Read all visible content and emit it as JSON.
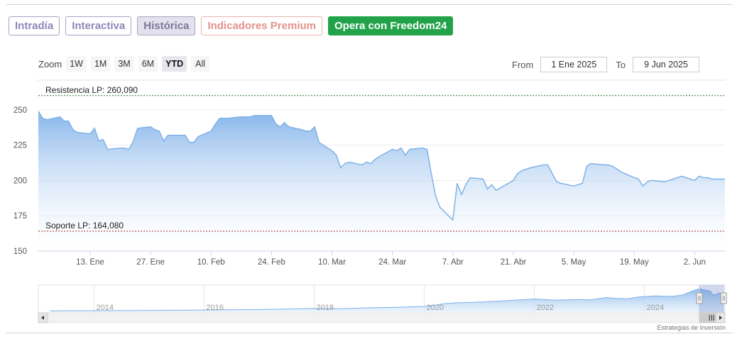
{
  "tabs": [
    {
      "label": "Intradía",
      "style": "normal"
    },
    {
      "label": "Interactiva",
      "style": "normal"
    },
    {
      "label": "Histórica",
      "style": "active"
    },
    {
      "label": "Indicadores Premium",
      "style": "premium"
    },
    {
      "label": "Opera con Freedom24",
      "style": "cta"
    }
  ],
  "zoom": {
    "label": "Zoom",
    "options": [
      "1W",
      "1M",
      "3M",
      "6M",
      "YTD",
      "All"
    ],
    "selected": "YTD"
  },
  "range": {
    "from_label": "From",
    "from_value": "1 Ene 2025",
    "to_label": "To",
    "to_value": "9 Jun 2025"
  },
  "credit": "Estrategias de Inversión",
  "colors": {
    "line": "#7fb2e8",
    "fill_top": "#7fb1ea",
    "resistance": "#2e6b2e",
    "support": "#a03030",
    "cta": "#22a34a"
  },
  "chart_data": {
    "type": "area",
    "x_start": "2025-01-01",
    "x_end": "2025-06-09",
    "ylim": [
      150,
      262
    ],
    "y_ticks": [
      150,
      175,
      200,
      225,
      250
    ],
    "x_ticks": [
      {
        "date": "2025-01-13",
        "label": "13. Ene"
      },
      {
        "date": "2025-01-27",
        "label": "27. Ene"
      },
      {
        "date": "2025-02-10",
        "label": "10. Feb"
      },
      {
        "date": "2025-02-24",
        "label": "24. Feb"
      },
      {
        "date": "2025-03-10",
        "label": "10. Mar"
      },
      {
        "date": "2025-03-24",
        "label": "24. Mar"
      },
      {
        "date": "2025-04-07",
        "label": "7. Abr"
      },
      {
        "date": "2025-04-21",
        "label": "21. Abr"
      },
      {
        "date": "2025-05-05",
        "label": "5. May"
      },
      {
        "date": "2025-05-19",
        "label": "19. May"
      },
      {
        "date": "2025-06-02",
        "label": "2. Jun"
      }
    ],
    "levels": [
      {
        "label": "Resistencia LP: 260,090",
        "value": 260.09,
        "kind": "resistance"
      },
      {
        "label": "Soporte LP: 164,080",
        "value": 164.08,
        "kind": "support"
      }
    ],
    "series": [
      {
        "points": [
          [
            "2025-01-01",
            249
          ],
          [
            "2025-01-02",
            244
          ],
          [
            "2025-01-03",
            243
          ],
          [
            "2025-01-06",
            245
          ],
          [
            "2025-01-07",
            242
          ],
          [
            "2025-01-08",
            242
          ],
          [
            "2025-01-09",
            236
          ],
          [
            "2025-01-10",
            234
          ],
          [
            "2025-01-13",
            233
          ],
          [
            "2025-01-14",
            237
          ],
          [
            "2025-01-15",
            228
          ],
          [
            "2025-01-16",
            229
          ],
          [
            "2025-01-17",
            222
          ],
          [
            "2025-01-20",
            223
          ],
          [
            "2025-01-21",
            223
          ],
          [
            "2025-01-22",
            222
          ],
          [
            "2025-01-23",
            228
          ],
          [
            "2025-01-24",
            237
          ],
          [
            "2025-01-27",
            238
          ],
          [
            "2025-01-28",
            236
          ],
          [
            "2025-01-29",
            235
          ],
          [
            "2025-01-30",
            228
          ],
          [
            "2025-01-31",
            232
          ],
          [
            "2025-02-03",
            232
          ],
          [
            "2025-02-04",
            232
          ],
          [
            "2025-02-05",
            227
          ],
          [
            "2025-02-06",
            227
          ],
          [
            "2025-02-07",
            231
          ],
          [
            "2025-02-10",
            235
          ],
          [
            "2025-02-11",
            240
          ],
          [
            "2025-02-12",
            244
          ],
          [
            "2025-02-13",
            244
          ],
          [
            "2025-02-14",
            244
          ],
          [
            "2025-02-17",
            245
          ],
          [
            "2025-02-18",
            245
          ],
          [
            "2025-02-19",
            245
          ],
          [
            "2025-02-20",
            246
          ],
          [
            "2025-02-21",
            246
          ],
          [
            "2025-02-24",
            246
          ],
          [
            "2025-02-25",
            240
          ],
          [
            "2025-02-26",
            238
          ],
          [
            "2025-02-27",
            241
          ],
          [
            "2025-02-28",
            238
          ],
          [
            "2025-03-03",
            236
          ],
          [
            "2025-03-04",
            235
          ],
          [
            "2025-03-05",
            235
          ],
          [
            "2025-03-06",
            238
          ],
          [
            "2025-03-07",
            227
          ],
          [
            "2025-03-10",
            221
          ],
          [
            "2025-03-11",
            218
          ],
          [
            "2025-03-12",
            209
          ],
          [
            "2025-03-13",
            212
          ],
          [
            "2025-03-14",
            213
          ],
          [
            "2025-03-17",
            211
          ],
          [
            "2025-03-18",
            213
          ],
          [
            "2025-03-19",
            212
          ],
          [
            "2025-03-20",
            215
          ],
          [
            "2025-03-21",
            217
          ],
          [
            "2025-03-24",
            222
          ],
          [
            "2025-03-25",
            221
          ],
          [
            "2025-03-26",
            223
          ],
          [
            "2025-03-27",
            218
          ],
          [
            "2025-03-28",
            222
          ],
          [
            "2025-03-31",
            223
          ],
          [
            "2025-04-01",
            222
          ],
          [
            "2025-04-02",
            205
          ],
          [
            "2025-04-03",
            189
          ],
          [
            "2025-04-04",
            181
          ],
          [
            "2025-04-07",
            172
          ],
          [
            "2025-04-08",
            198
          ],
          [
            "2025-04-09",
            190
          ],
          [
            "2025-04-10",
            197
          ],
          [
            "2025-04-11",
            202
          ],
          [
            "2025-04-14",
            201
          ],
          [
            "2025-04-15",
            194
          ],
          [
            "2025-04-16",
            197
          ],
          [
            "2025-04-17",
            193
          ],
          [
            "2025-04-21",
            200
          ],
          [
            "2025-04-22",
            205
          ],
          [
            "2025-04-23",
            207
          ],
          [
            "2025-04-24",
            208
          ],
          [
            "2025-04-25",
            209
          ],
          [
            "2025-04-28",
            211
          ],
          [
            "2025-04-29",
            211
          ],
          [
            "2025-04-30",
            205
          ],
          [
            "2025-05-01",
            199
          ],
          [
            "2025-05-02",
            198
          ],
          [
            "2025-05-05",
            196
          ],
          [
            "2025-05-06",
            197
          ],
          [
            "2025-05-07",
            198
          ],
          [
            "2025-05-08",
            210
          ],
          [
            "2025-05-09",
            212
          ],
          [
            "2025-05-12",
            211
          ],
          [
            "2025-05-13",
            211
          ],
          [
            "2025-05-14",
            210
          ],
          [
            "2025-05-15",
            208
          ],
          [
            "2025-05-16",
            206
          ],
          [
            "2025-05-19",
            202
          ],
          [
            "2025-05-20",
            201
          ],
          [
            "2025-05-21",
            196
          ],
          [
            "2025-05-22",
            199
          ],
          [
            "2025-05-23",
            200
          ],
          [
            "2025-05-26",
            199
          ],
          [
            "2025-05-27",
            200
          ],
          [
            "2025-05-28",
            201
          ],
          [
            "2025-05-29",
            202
          ],
          [
            "2025-05-30",
            203
          ],
          [
            "2025-06-02",
            200
          ],
          [
            "2025-06-03",
            203
          ],
          [
            "2025-06-04",
            202
          ],
          [
            "2025-06-05",
            202
          ],
          [
            "2025-06-06",
            201
          ],
          [
            "2025-06-09",
            201
          ]
        ]
      }
    ],
    "navigator": {
      "x_start": 2013.0,
      "x_end": 2025.45,
      "ylim": [
        0,
        270
      ],
      "year_labels": [
        "2014",
        "2016",
        "2018",
        "2020",
        "2022",
        "2024"
      ],
      "year_values": [
        2014,
        2016,
        2018,
        2020,
        2022,
        2024
      ],
      "window": [
        2025.0,
        2025.44
      ],
      "points": [
        [
          2013.2,
          13
        ],
        [
          2014.0,
          14
        ],
        [
          2015.0,
          17
        ],
        [
          2016.0,
          22
        ],
        [
          2017.0,
          27
        ],
        [
          2017.8,
          35
        ],
        [
          2018.0,
          38
        ],
        [
          2018.5,
          36
        ],
        [
          2019.0,
          45
        ],
        [
          2019.5,
          50
        ],
        [
          2020.0,
          60
        ],
        [
          2020.2,
          72
        ],
        [
          2020.35,
          88
        ],
        [
          2020.6,
          98
        ],
        [
          2020.9,
          103
        ],
        [
          2021.2,
          112
        ],
        [
          2021.6,
          124
        ],
        [
          2022.0,
          138
        ],
        [
          2022.4,
          125
        ],
        [
          2022.8,
          133
        ],
        [
          2023.0,
          128
        ],
        [
          2023.3,
          153
        ],
        [
          2023.5,
          145
        ],
        [
          2023.7,
          140
        ],
        [
          2023.9,
          160
        ],
        [
          2024.2,
          170
        ],
        [
          2024.5,
          165
        ],
        [
          2024.7,
          182
        ],
        [
          2024.9,
          230
        ],
        [
          2025.0,
          245
        ],
        [
          2025.2,
          222
        ],
        [
          2025.25,
          178
        ],
        [
          2025.35,
          200
        ],
        [
          2025.44,
          201
        ]
      ]
    }
  }
}
